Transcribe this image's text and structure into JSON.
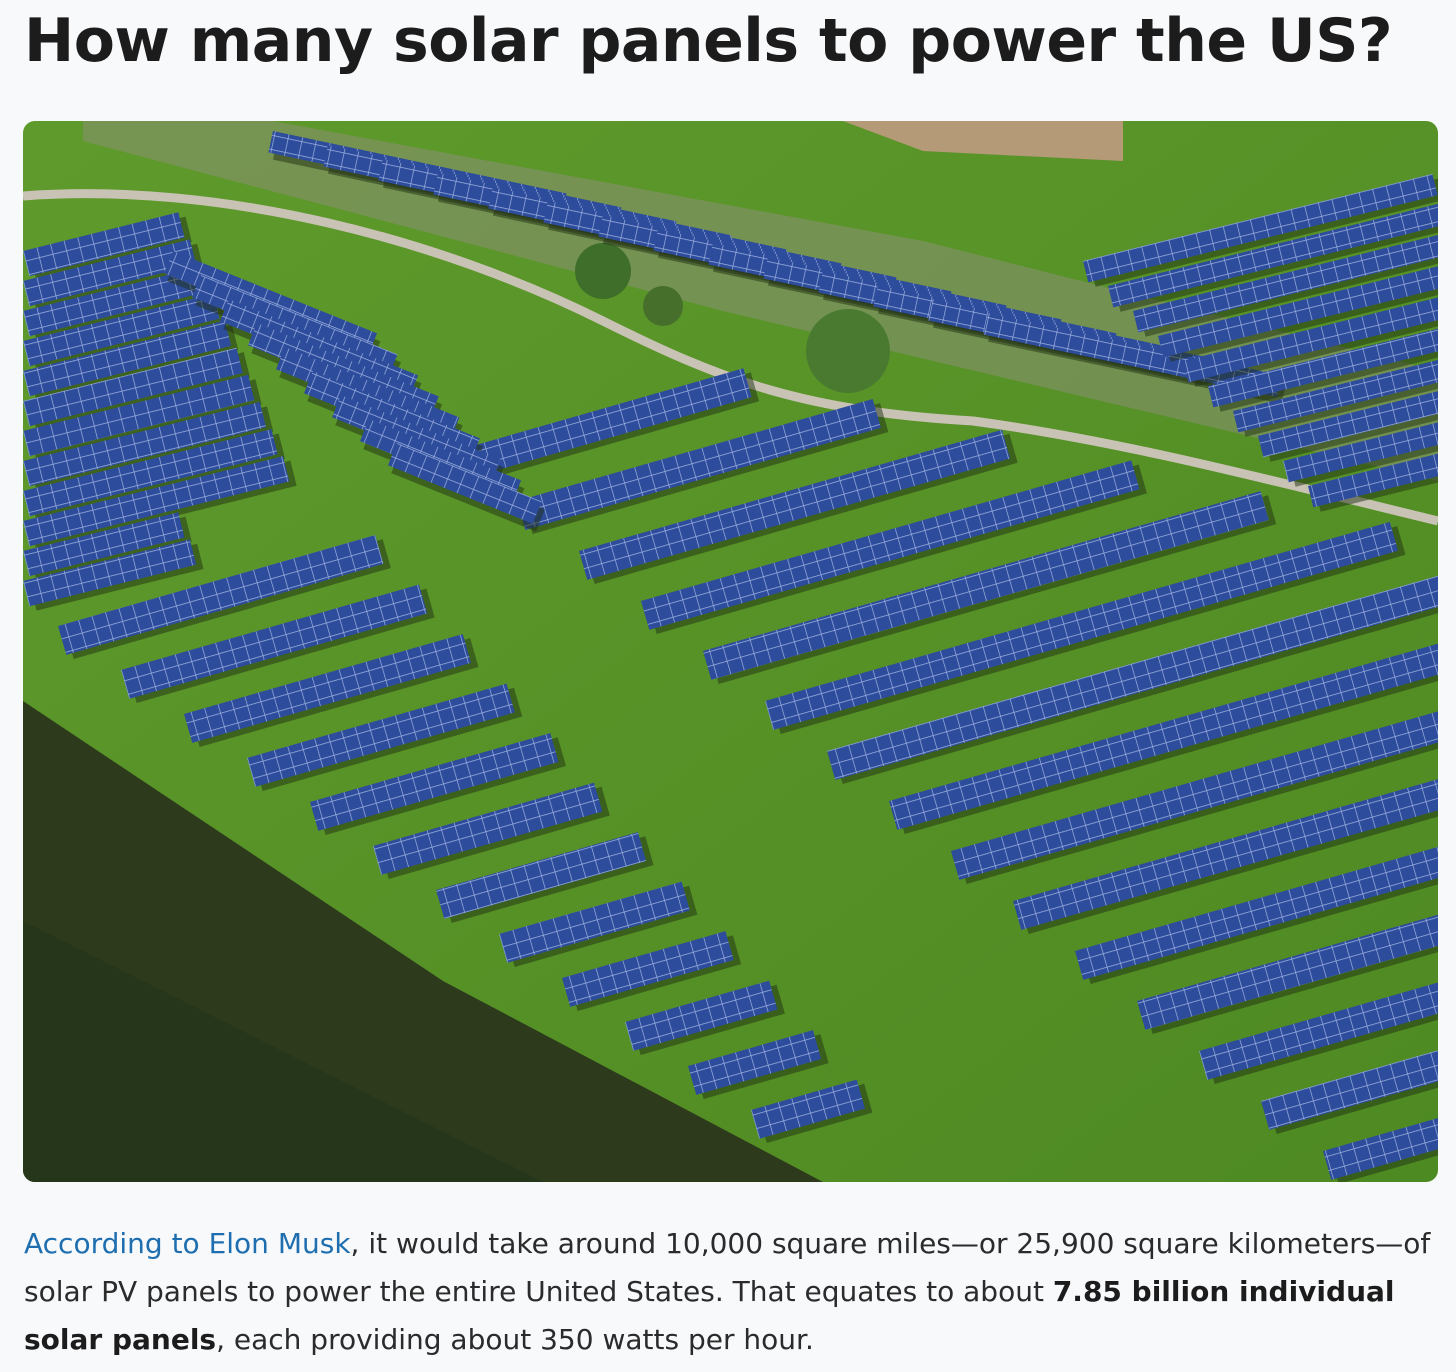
{
  "header": {
    "title": "How many solar panels to power the US?"
  },
  "paragraph": {
    "link": "According to Elon Musk",
    "text1": ", it would take around 10,000 square miles—or 25,900 square kilometers—of solar PV panels to power the entire United States. That equates to about ",
    "bold": "7.85 billion individual solar panels",
    "text2": ", each providing about 350 watts per hour."
  }
}
